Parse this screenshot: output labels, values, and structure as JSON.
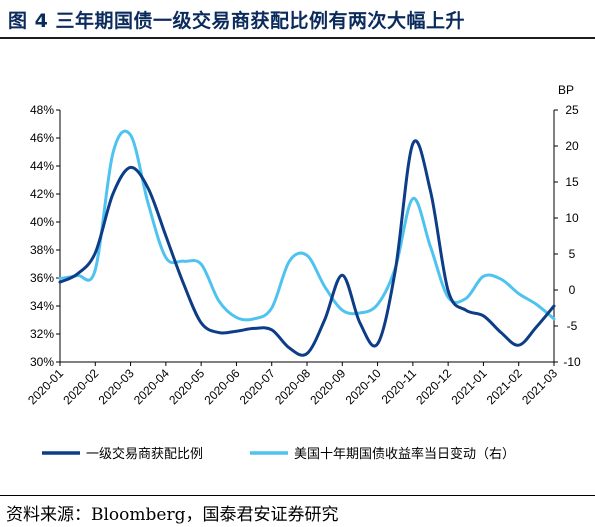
{
  "title": "图 4  三年期国债一级交易商获配比例有两次大幅上升",
  "source": "资料来源：Bloomberg，国泰君安证券研究",
  "colors": {
    "series1": "#0d3d87",
    "series2": "#4fc3ef",
    "title": "#0b2b5c"
  },
  "chart_data": {
    "type": "line",
    "categories": [
      "2020-01",
      "2020-02",
      "2020-03",
      "2020-04",
      "2020-05",
      "2020-06",
      "2020-07",
      "2020-08",
      "2020-09",
      "2020-10",
      "2020-11",
      "2020-12",
      "2021-01",
      "2021-02",
      "2021-03"
    ],
    "y_left": {
      "ticks": [
        "48%",
        "46%",
        "44%",
        "42%",
        "40%",
        "38%",
        "36%",
        "34%",
        "32%",
        "30%"
      ],
      "min": 30,
      "max": 48
    },
    "y_right": {
      "label": "BP",
      "ticks": [
        "25",
        "20",
        "15",
        "10",
        "5",
        "0",
        "-5",
        "-10"
      ],
      "min": -10,
      "max": 25
    },
    "grid": false,
    "legend_position": "bottom",
    "series": [
      {
        "name": "一级交易商获配比例",
        "axis": "left",
        "x": [
          0,
          0.5,
          1.0,
          1.5,
          2.0,
          2.5,
          3.0,
          3.5,
          4.0,
          4.5,
          5.0,
          5.5,
          6.0,
          6.5,
          7.0,
          7.5,
          8.0,
          8.5,
          9.0,
          9.5,
          10.0,
          10.5,
          11.0,
          11.5,
          12.0,
          12.5,
          13.0,
          13.5,
          14.0
        ],
        "y": [
          35.7,
          36.3,
          37.8,
          42.0,
          43.9,
          42.4,
          39.0,
          35.6,
          32.8,
          32.1,
          32.2,
          32.4,
          32.3,
          31.0,
          30.6,
          33.0,
          36.2,
          32.8,
          31.3,
          36.5,
          45.6,
          42.2,
          35.1,
          33.7,
          33.3,
          32.1,
          31.2,
          32.5,
          34.0
        ]
      },
      {
        "name": "美国十年期国债收益率当日变动（右）",
        "axis": "right",
        "x": [
          0,
          0.5,
          1.0,
          1.5,
          2.0,
          2.5,
          3.0,
          3.5,
          4.0,
          4.5,
          5.0,
          5.5,
          6.0,
          6.5,
          7.0,
          7.5,
          8.0,
          8.5,
          9.0,
          9.5,
          10.0,
          10.5,
          11.0,
          11.5,
          12.0,
          12.5,
          13.0,
          13.5,
          14.0
        ],
        "y": [
          1.6,
          2.0,
          2.8,
          19.0,
          21.5,
          12.0,
          4.5,
          4.0,
          3.6,
          -1.5,
          -3.8,
          -4.0,
          -2.5,
          4.0,
          4.8,
          0.5,
          -2.8,
          -3.2,
          -2.0,
          3.0,
          12.7,
          6.0,
          -1.0,
          -1.2,
          1.9,
          1.5,
          -0.5,
          -2.0,
          -4.0
        ]
      }
    ]
  }
}
